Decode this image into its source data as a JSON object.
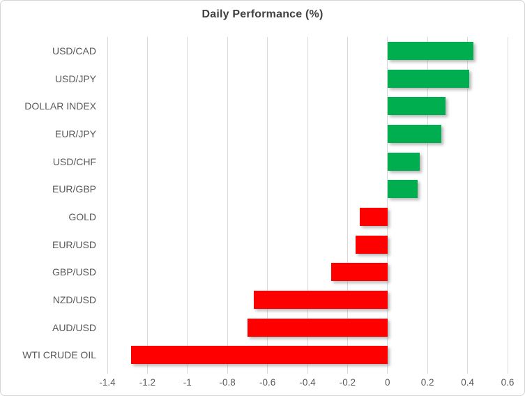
{
  "chart_data": {
    "type": "bar",
    "orientation": "horizontal",
    "title": "Daily Performance (%)",
    "categories": [
      "USD/CAD",
      "USD/JPY",
      "DOLLAR INDEX",
      "EUR/JPY",
      "USD/CHF",
      "EUR/GBP",
      "GOLD",
      "EUR/USD",
      "GBP/USD",
      "NZD/USD",
      "AUD/USD",
      "WTI CRUDE OIL"
    ],
    "values": [
      0.43,
      0.41,
      0.29,
      0.27,
      0.16,
      0.15,
      -0.14,
      -0.16,
      -0.28,
      -0.67,
      -0.7,
      -1.28
    ],
    "xlabel": "",
    "ylabel": "",
    "xlim": [
      -1.4,
      0.6
    ],
    "x_ticks": [
      -1.4,
      -1.2,
      -1,
      -0.8,
      -0.6,
      -0.4,
      -0.2,
      0,
      0.2,
      0.4,
      0.6
    ],
    "x_tick_labels": [
      "-1.4",
      "-1.2",
      "-1",
      "-0.8",
      "-0.6",
      "-0.4",
      "-0.2",
      "0",
      "0.2",
      "0.4",
      "0.6"
    ],
    "grid": true,
    "legend": false,
    "colors": {
      "positive": "#00AE50",
      "negative": "#FF0000",
      "gridline": "#D9D9D9",
      "title_text": "#404040",
      "label_text": "#595959"
    }
  }
}
